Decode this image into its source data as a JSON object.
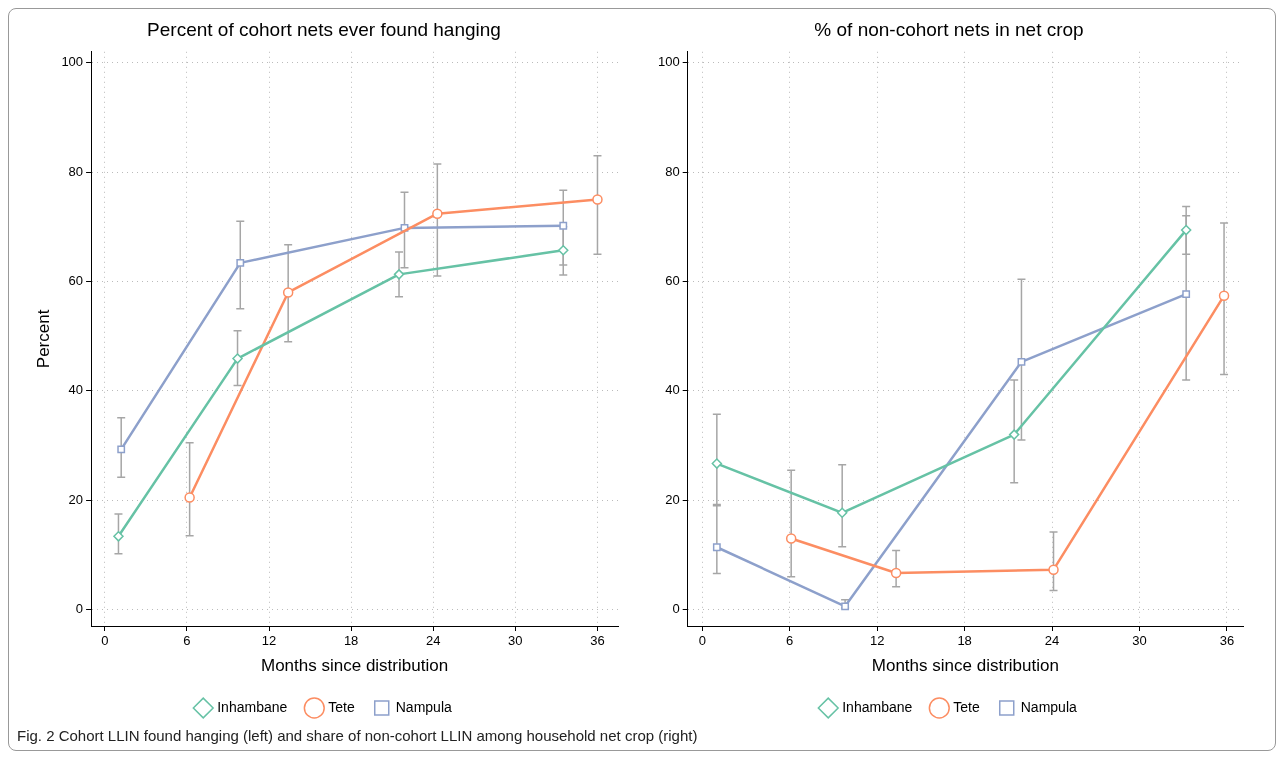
{
  "chart_data": [
    {
      "type": "line",
      "title": "Percent of cohort nets ever found hanging",
      "xlabel": "Months since distribution",
      "ylabel": "Percent",
      "xlim": [
        -1,
        37.5
      ],
      "ylim": [
        -3,
        102
      ],
      "xticks": [
        0,
        6,
        12,
        18,
        24,
        30,
        36
      ],
      "yticks": [
        0,
        20,
        40,
        60,
        80,
        100
      ],
      "grid": true,
      "legend": "bottom",
      "series": [
        {
          "name": "Inhambane",
          "color": "#66c2a5",
          "marker": "diamond",
          "x": [
            1,
            9.7,
            21.5,
            33.5
          ],
          "values": [
            13.4,
            45.9,
            61.3,
            65.7
          ],
          "errors": [
            [
              10.2,
              17.5
            ],
            [
              41,
              51
            ],
            [
              57.2,
              65.4
            ],
            [
              61.2,
              70
            ]
          ]
        },
        {
          "name": "Tete",
          "color": "#fc8d62",
          "marker": "circle",
          "x": [
            6.2,
            13.4,
            24.3,
            36
          ],
          "values": [
            20.5,
            58,
            72.4,
            75
          ],
          "errors": [
            [
              13.5,
              30.5
            ],
            [
              49,
              66.7
            ],
            [
              61,
              81.5
            ],
            [
              65,
              83
            ]
          ]
        },
        {
          "name": "Nampula",
          "color": "#8da0cb",
          "marker": "square",
          "x": [
            1.2,
            9.9,
            21.9,
            33.5
          ],
          "values": [
            29.3,
            63.4,
            69.8,
            70.2
          ],
          "errors": [
            [
              24.2,
              35.1
            ],
            [
              55,
              71
            ],
            [
              62.5,
              76.3
            ],
            [
              63,
              76.7
            ]
          ]
        }
      ]
    },
    {
      "type": "line",
      "title": "% of non-cohort nets in net crop",
      "xlabel": "Months since distribution",
      "xlim": [
        -1,
        37.1
      ],
      "ylim": [
        -3,
        102
      ],
      "xticks": [
        0,
        6,
        12,
        18,
        24,
        30,
        36
      ],
      "yticks": [
        0,
        20,
        40,
        60,
        80,
        100
      ],
      "grid": true,
      "legend": "bottom",
      "annotations": [
        "Fig. 2 Cohort LLIN found hanging (left) and share of non-cohort LLIN among household net crop (right)"
      ],
      "series": [
        {
          "name": "Inhambane",
          "color": "#66c2a5",
          "marker": "diamond",
          "x": [
            1,
            9.6,
            21.4,
            33.2
          ],
          "values": [
            26.7,
            17.7,
            32,
            69.4
          ],
          "errors": [
            [
              19,
              35.7
            ],
            [
              11.5,
              26.5
            ],
            [
              23.2,
              42
            ],
            [
              65,
              73.7
            ]
          ]
        },
        {
          "name": "Tete",
          "color": "#fc8d62",
          "marker": "circle",
          "x": [
            6.1,
            13.3,
            24.1,
            35.8
          ],
          "values": [
            13,
            6.7,
            7.3,
            57.4
          ],
          "errors": [
            [
              6,
              25.5
            ],
            [
              4.2,
              10.8
            ],
            [
              3.5,
              14.2
            ],
            [
              43,
              70.7
            ]
          ]
        },
        {
          "name": "Nampula",
          "color": "#8da0cb",
          "marker": "square",
          "x": [
            1,
            9.8,
            21.9,
            33.2
          ],
          "values": [
            11.4,
            0.6,
            45.3,
            57.7
          ],
          "errors": [
            [
              6.6,
              19.2
            ],
            [
              0.3,
              1.8
            ],
            [
              31,
              60.4
            ],
            [
              42,
              72
            ]
          ]
        }
      ]
    }
  ]
}
